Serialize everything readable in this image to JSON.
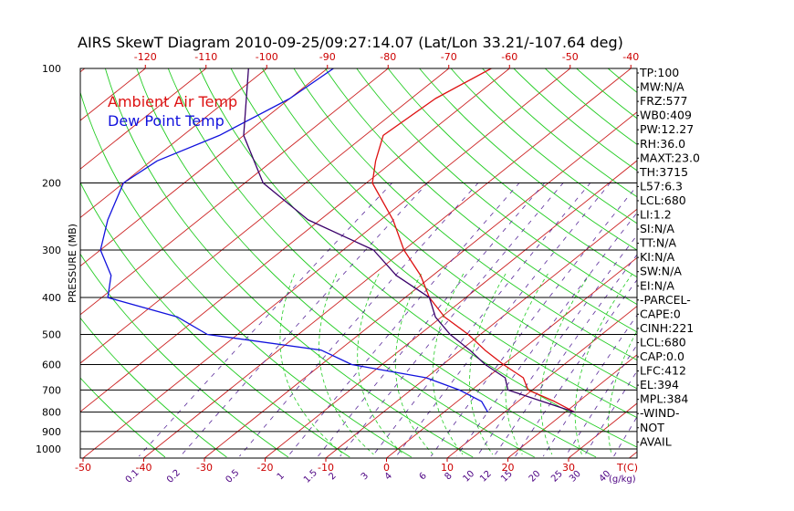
{
  "chart_data": {
    "type": "line",
    "title": "AIRS SkewT Diagram 2010-09-25/09:27:14.07 (Lat/Lon 33.21/-107.64 deg)",
    "ylabel": "PRESSURE (MB)",
    "pressure_ticks": [
      100,
      200,
      300,
      400,
      500,
      600,
      700,
      800,
      900,
      1000
    ],
    "pressure_range": [
      100,
      1000
    ],
    "temp_ticks_top": [
      -120,
      -110,
      -100,
      -90,
      -80,
      -70,
      -60,
      -50,
      -40
    ],
    "temp_ticks_bottom": [
      -50,
      -40,
      -30,
      -20,
      -10,
      0,
      10,
      20,
      30
    ],
    "temp_axis_unit": "T(C)",
    "mixing_ratio_ticks": [
      "0.1",
      "0.2",
      "0.5",
      "1",
      "1.5",
      "2",
      "3",
      "4",
      "6",
      "8",
      "10",
      "12",
      "15",
      "20",
      "25",
      "30",
      "40"
    ],
    "mixing_ratio_unit": "(g/kg)",
    "legend": [
      {
        "label": "Ambient Air Temp",
        "color": "#dd1111"
      },
      {
        "label": "Dew Point Temp",
        "color": "#1111dd"
      }
    ],
    "series": [
      {
        "name": "Ambient Air Temp",
        "color": "#dd1111",
        "points": [
          [
            100,
            -63
          ],
          [
            120,
            -66
          ],
          [
            150,
            -67
          ],
          [
            175,
            -63
          ],
          [
            200,
            -59
          ],
          [
            250,
            -48
          ],
          [
            300,
            -40
          ],
          [
            350,
            -32
          ],
          [
            400,
            -26
          ],
          [
            450,
            -19.5
          ],
          [
            500,
            -12
          ],
          [
            550,
            -6
          ],
          [
            600,
            0
          ],
          [
            650,
            6
          ],
          [
            700,
            9.3
          ],
          [
            750,
            16
          ],
          [
            800,
            21.5
          ]
        ]
      },
      {
        "name": "Dew Point Temp",
        "color": "#1111dd",
        "points": [
          [
            100,
            -89
          ],
          [
            120,
            -90
          ],
          [
            150,
            -94
          ],
          [
            175,
            -99
          ],
          [
            200,
            -100
          ],
          [
            250,
            -95
          ],
          [
            300,
            -90
          ],
          [
            350,
            -83
          ],
          [
            400,
            -79
          ],
          [
            450,
            -63.5
          ],
          [
            500,
            -55
          ],
          [
            550,
            -33
          ],
          [
            600,
            -25
          ],
          [
            650,
            -10
          ],
          [
            700,
            -2
          ],
          [
            750,
            4
          ],
          [
            800,
            7.2
          ]
        ]
      },
      {
        "name": "Parcel",
        "color": "#3a006a",
        "points": [
          [
            100,
            -103
          ],
          [
            150,
            -90
          ],
          [
            200,
            -77
          ],
          [
            250,
            -62
          ],
          [
            300,
            -45
          ],
          [
            350,
            -36
          ],
          [
            400,
            -26
          ],
          [
            450,
            -21
          ],
          [
            500,
            -15
          ],
          [
            550,
            -8.5
          ],
          [
            600,
            -3
          ],
          [
            650,
            3
          ],
          [
            700,
            6
          ],
          [
            750,
            14
          ],
          [
            800,
            21.5
          ]
        ]
      }
    ],
    "indices": [
      "TP:100",
      "MW:N/A",
      "FRZ:577",
      "WB0:409",
      "PW:12.27",
      "RH:36.0",
      "MAXT:23.0",
      "TH:3715",
      "L57:6.3",
      "LCL:680",
      "LI:1.2",
      "SI:N/A",
      "TT:N/A",
      "KI:N/A",
      "SW:N/A",
      "EI:N/A",
      "-PARCEL-",
      "CAPE:0",
      "CINH:221",
      "LCL:680",
      "CAP:0.0",
      "LFC:412",
      "EL:394",
      "MPL:384",
      "-WIND-",
      "NOT",
      "AVAIL"
    ],
    "grid": true
  }
}
